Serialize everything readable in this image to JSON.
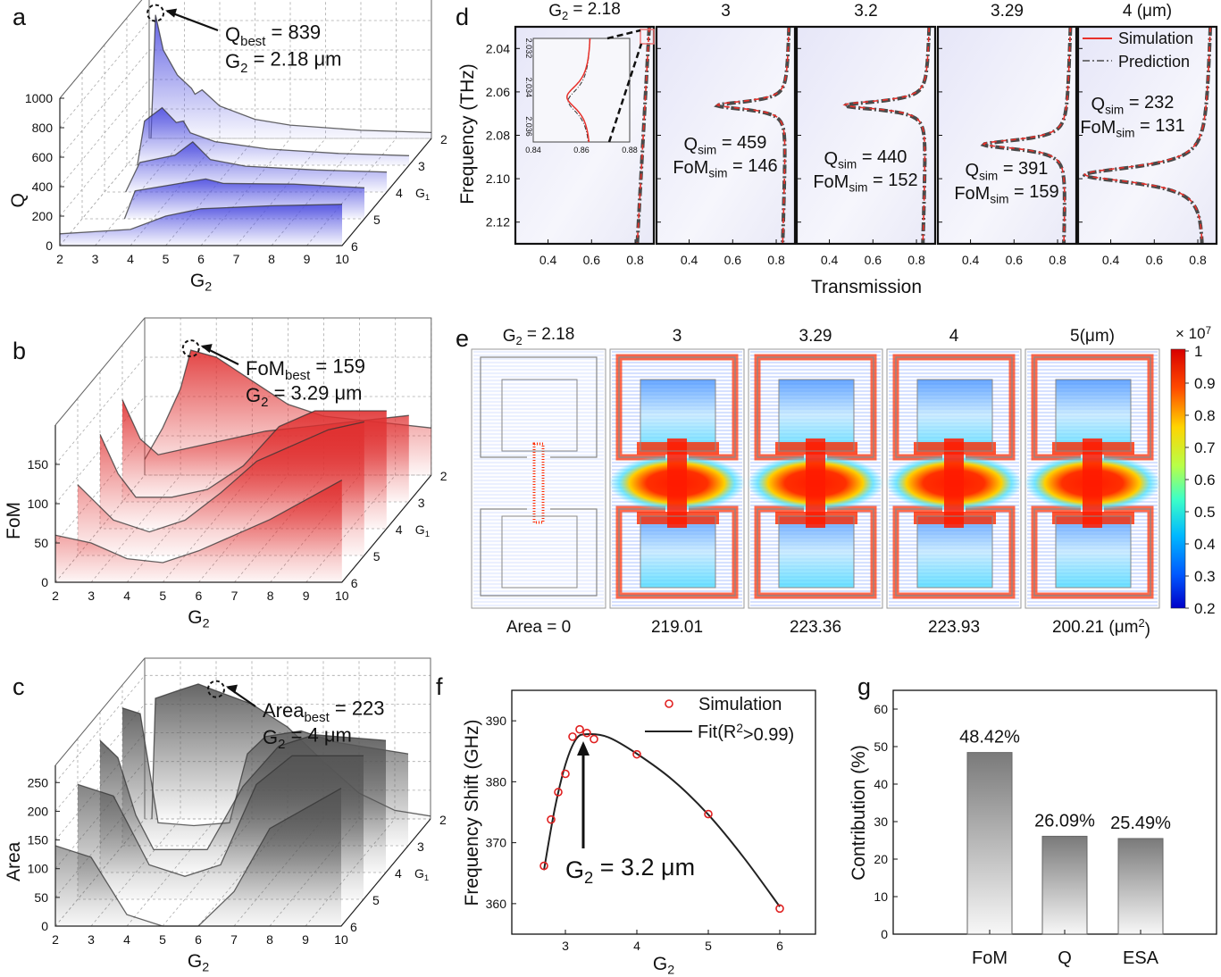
{
  "figure": {
    "panel_labels": [
      "a",
      "b",
      "c",
      "d",
      "e",
      "f",
      "g"
    ]
  },
  "chart_data": [
    {
      "panel": "a",
      "type": "area",
      "subtype": "3d-waterfall",
      "zlabel": "Q",
      "xlabel": {
        "main": "G",
        "sub": "2"
      },
      "ylabel": {
        "main": "G",
        "sub": "1"
      },
      "xlim": [
        2,
        10
      ],
      "ylim": [
        2,
        6
      ],
      "zlim": [
        0,
        1000
      ],
      "xticks": [
        "2",
        "3",
        "4",
        "5",
        "6",
        "7",
        "8",
        "9",
        "10"
      ],
      "yticks": [
        "2",
        "3",
        "4",
        "5",
        "6"
      ],
      "zticks": [
        "0",
        "200",
        "400",
        "600",
        "800",
        "1000"
      ],
      "grid": true,
      "color": "#5050e0",
      "series": [
        {
          "g1": 2,
          "points": [
            [
              2.05,
              0
            ],
            [
              2.18,
              839
            ],
            [
              2.4,
              600
            ],
            [
              2.8,
              430
            ],
            [
              3.2,
              340
            ],
            [
              3.3,
              300
            ],
            [
              3.5,
              330
            ],
            [
              4,
              220
            ],
            [
              5,
              130
            ],
            [
              6,
              90
            ],
            [
              8,
              55
            ],
            [
              10,
              40
            ]
          ]
        },
        {
          "g1": 3,
          "points": [
            [
              2.3,
              0
            ],
            [
              2.5,
              300
            ],
            [
              3,
              390
            ],
            [
              3.4,
              290
            ],
            [
              3.6,
              300
            ],
            [
              3.8,
              220
            ],
            [
              4.5,
              160
            ],
            [
              6,
              110
            ],
            [
              8,
              80
            ],
            [
              10,
              65
            ]
          ]
        },
        {
          "g1": 4,
          "points": [
            [
              2.6,
              0
            ],
            [
              3,
              200
            ],
            [
              4,
              250
            ],
            [
              4.5,
              340
            ],
            [
              5,
              220
            ],
            [
              6,
              175
            ],
            [
              8,
              150
            ],
            [
              10,
              135
            ]
          ]
        },
        {
          "g1": 5,
          "points": [
            [
              3.2,
              0
            ],
            [
              3.5,
              190
            ],
            [
              4.5,
              230
            ],
            [
              5.5,
              270
            ],
            [
              6,
              240
            ],
            [
              8,
              235
            ],
            [
              10,
              210
            ]
          ]
        },
        {
          "g1": 6,
          "points": [
            [
              2,
              80
            ],
            [
              4,
              110
            ],
            [
              5,
              200
            ],
            [
              6,
              250
            ],
            [
              8,
              270
            ],
            [
              10,
              280
            ]
          ]
        }
      ],
      "annotation": {
        "x": 2.18,
        "g1": 2,
        "z": 839,
        "lines": [
          {
            "main": "Q",
            "sub": "best",
            "rest": " = 839"
          },
          {
            "main": "G",
            "sub": "2",
            "rest": " = 2.18 μm"
          }
        ]
      }
    },
    {
      "panel": "b",
      "type": "area",
      "subtype": "3d-waterfall",
      "zlabel": "FoM",
      "xlabel": {
        "main": "G",
        "sub": "2"
      },
      "ylabel": {
        "main": "G",
        "sub": "1"
      },
      "xlim": [
        2,
        10
      ],
      "ylim": [
        2,
        6
      ],
      "zlim": [
        0,
        200
      ],
      "xticks": [
        "2",
        "3",
        "4",
        "5",
        "6",
        "7",
        "8",
        "9",
        "10"
      ],
      "yticks": [
        "2",
        "3",
        "4",
        "5",
        "6"
      ],
      "zticks": [
        "0",
        "50",
        "100",
        "150"
      ],
      "grid": true,
      "color": "#e03030",
      "series": [
        {
          "g1": 2,
          "points": [
            [
              2,
              20
            ],
            [
              2.5,
              60
            ],
            [
              3,
              110
            ],
            [
              3.29,
              159
            ],
            [
              4,
              150
            ],
            [
              5,
              120
            ],
            [
              6,
              90
            ],
            [
              7,
              75
            ],
            [
              8,
              70
            ],
            [
              10,
              60
            ]
          ]
        },
        {
          "g1": 3,
          "points": [
            [
              2,
              130
            ],
            [
              2.5,
              80
            ],
            [
              3,
              60
            ],
            [
              4,
              70
            ],
            [
              5,
              80
            ],
            [
              6,
              90
            ],
            [
              8,
              100
            ],
            [
              10,
              110
            ]
          ]
        },
        {
          "g1": 4,
          "points": [
            [
              2,
              120
            ],
            [
              2.5,
              70
            ],
            [
              3,
              40
            ],
            [
              4,
              40
            ],
            [
              5,
              50
            ],
            [
              6,
              80
            ],
            [
              7,
              130
            ],
            [
              8,
              150
            ],
            [
              10,
              150
            ]
          ]
        },
        {
          "g1": 5,
          "points": [
            [
              2,
              90
            ],
            [
              3,
              45
            ],
            [
              4,
              30
            ],
            [
              5,
              45
            ],
            [
              6,
              80
            ],
            [
              7,
              120
            ],
            [
              9,
              160
            ],
            [
              10,
              170
            ]
          ]
        },
        {
          "g1": 6,
          "points": [
            [
              2,
              60
            ],
            [
              3,
              50
            ],
            [
              4,
              30
            ],
            [
              5,
              25
            ],
            [
              6,
              40
            ],
            [
              8,
              80
            ],
            [
              10,
              130
            ]
          ]
        }
      ],
      "annotation": {
        "x": 3.29,
        "g1": 2,
        "z": 159,
        "lines": [
          {
            "main": "FoM",
            "sub": "best",
            "rest": " = 159"
          },
          {
            "main": "G",
            "sub": "2",
            "rest": " = 3.29 μm"
          }
        ]
      }
    },
    {
      "panel": "c",
      "type": "area",
      "subtype": "3d-waterfall",
      "zlabel": "Area",
      "xlabel": {
        "main": "G",
        "sub": "2"
      },
      "ylabel": {
        "main": "G",
        "sub": "1"
      },
      "xlim": [
        2,
        10
      ],
      "ylim": [
        2,
        6
      ],
      "zlim": [
        0,
        280
      ],
      "xticks": [
        "2",
        "3",
        "4",
        "5",
        "6",
        "7",
        "8",
        "9",
        "10"
      ],
      "yticks": [
        "2",
        "3",
        "4",
        "5",
        "6"
      ],
      "zticks": [
        "0",
        "50",
        "100",
        "150",
        "200",
        "250"
      ],
      "grid": true,
      "color": "#555555",
      "series": [
        {
          "g1": 2,
          "points": [
            [
              2.2,
              0
            ],
            [
              2.3,
              210
            ],
            [
              3,
              225
            ],
            [
              3.5,
              235
            ],
            [
              4,
              223
            ],
            [
              5,
              200
            ],
            [
              6,
              160
            ],
            [
              7,
              100
            ],
            [
              8,
              45
            ],
            [
              9,
              15
            ],
            [
              10,
              5
            ]
          ]
        },
        {
          "g1": 3,
          "points": [
            [
              2,
              240
            ],
            [
              2.5,
              230
            ],
            [
              3,
              40
            ],
            [
              4,
              35
            ],
            [
              5,
              40
            ],
            [
              5.5,
              160
            ],
            [
              6,
              190
            ],
            [
              7,
              200
            ],
            [
              8,
              180
            ],
            [
              10,
              160
            ]
          ]
        },
        {
          "g1": 4,
          "points": [
            [
              2,
              230
            ],
            [
              2.5,
              200
            ],
            [
              3,
              100
            ],
            [
              3.5,
              40
            ],
            [
              5,
              40
            ],
            [
              6,
              150
            ],
            [
              7,
              220
            ],
            [
              8,
              240
            ],
            [
              10,
              230
            ]
          ]
        },
        {
          "g1": 5,
          "points": [
            [
              2,
              200
            ],
            [
              3,
              180
            ],
            [
              4,
              60
            ],
            [
              5,
              40
            ],
            [
              6,
              60
            ],
            [
              7,
              200
            ],
            [
              8,
              250
            ],
            [
              10,
              250
            ]
          ]
        },
        {
          "g1": 6,
          "points": [
            [
              2,
              140
            ],
            [
              3,
              120
            ],
            [
              4,
              20
            ],
            [
              5,
              0
            ],
            [
              6,
              0
            ],
            [
              7,
              60
            ],
            [
              8,
              170
            ],
            [
              10,
              240
            ]
          ]
        }
      ],
      "annotation": {
        "x": 4,
        "g1": 2,
        "z": 223,
        "lines": [
          {
            "main": "Area",
            "sub": "best",
            "rest": " = 223"
          },
          {
            "main": "G",
            "sub": "2",
            "rest": " = 4 μm"
          }
        ]
      }
    },
    {
      "panel": "d",
      "type": "line",
      "ylabel": "Frequency (THz)",
      "xlabel": "Transmission",
      "xlim": [
        0.25,
        0.886
      ],
      "ylim": [
        2.03,
        2.13
      ],
      "y_inverted": true,
      "xticks": [
        "0.4",
        "0.6",
        "0.8"
      ],
      "yticks": [
        "2.04",
        "2.06",
        "2.08",
        "2.10",
        "2.12"
      ],
      "legend": {
        "position": "top-right",
        "items": [
          "Simulation",
          "Prediction"
        ]
      },
      "colors": {
        "simulation": "#e8302a",
        "prediction": "#4a4a4a"
      },
      "subplots": [
        {
          "title": {
            "main": "G",
            "sub": "2",
            "rest": " = 2.18"
          },
          "f0": null,
          "t_min": null,
          "base": [
            0.865,
            0.81
          ]
        },
        {
          "title": {
            "main": "3",
            "sub": "",
            "rest": ""
          },
          "f0": 2.066,
          "t_min": 0.53,
          "base": [
            0.86,
            0.83
          ],
          "q_sim": {
            "main": "Q",
            "sub": "sim",
            "rest": " = 459"
          },
          "fom_sim": {
            "main": "FoM",
            "sub": "sim",
            "rest": " = 146"
          },
          "Q": 459
        },
        {
          "title": {
            "main": "3.2",
            "sub": "",
            "rest": ""
          },
          "f0": 2.066,
          "t_min": 0.47,
          "base": [
            0.86,
            0.83
          ],
          "q_sim": {
            "main": "Q",
            "sub": "sim",
            "rest": " = 440"
          },
          "fom_sim": {
            "main": "FoM",
            "sub": "sim",
            "rest": " = 152"
          },
          "Q": 440
        },
        {
          "title": {
            "main": "3.29",
            "sub": "",
            "rest": ""
          },
          "f0": 2.084,
          "t_min": 0.46,
          "base": [
            0.86,
            0.83
          ],
          "q_sim": {
            "main": "Q",
            "sub": "sim",
            "rest": " = 391"
          },
          "fom_sim": {
            "main": "FoM",
            "sub": "sim",
            "rest": " = 159"
          },
          "Q": 391
        },
        {
          "title": {
            "main": "4 (μm)",
            "sub": "",
            "rest": ""
          },
          "f0": 2.098,
          "t_min": 0.28,
          "base": [
            0.86,
            0.83
          ],
          "q_sim": {
            "main": "Q",
            "sub": "sim",
            "rest": " = 232"
          },
          "fom_sim": {
            "main": "FoM",
            "sub": "sim",
            "rest": " = 131"
          },
          "Q": 232
        }
      ],
      "inset": {
        "xlim": [
          0.84,
          0.88
        ],
        "ylim": [
          2.0315,
          2.0368
        ],
        "xticks": [
          "0.84",
          "0.86",
          "0.88"
        ],
        "yticks": [
          "2.032",
          "2.034",
          "2.036"
        ],
        "f0": 2.0345,
        "t_min": 0.854
      }
    },
    {
      "panel": "e",
      "type": "heatmap",
      "subtype": "field-maps",
      "titles": [
        {
          "main": "G",
          "sub": "2",
          "rest": " = 2.18"
        },
        {
          "main": "3",
          "sub": "",
          "rest": ""
        },
        {
          "main": "3.29",
          "sub": "",
          "rest": ""
        },
        {
          "main": "4",
          "sub": "",
          "rest": ""
        },
        {
          "main": "5(μm)",
          "sub": "",
          "rest": ""
        }
      ],
      "areas": [
        {
          "main": "Area = 0",
          "sup": "",
          "rest": ""
        },
        {
          "main": "219.01",
          "sup": "",
          "rest": ""
        },
        {
          "main": "223.36",
          "sup": "",
          "rest": ""
        },
        {
          "main": "223.93",
          "sup": "",
          "rest": ""
        },
        {
          "main": "200.21 (μm",
          "sup": "2",
          "rest": ")"
        }
      ],
      "colorbar": {
        "colormap": "jet",
        "range": [
          0.2,
          1
        ],
        "ticks": [
          "1",
          "0.9",
          "0.8",
          "0.7",
          "0.6",
          "0.5",
          "0.4",
          "0.3",
          "0.2"
        ],
        "multiplier": {
          "main": "× 10",
          "sup": "7"
        }
      }
    },
    {
      "panel": "f",
      "type": "scatter",
      "xlabel": {
        "main": "G",
        "sub": "2"
      },
      "ylabel": "Frequency Shift (GHz)",
      "xlim": [
        2.25,
        6.5
      ],
      "ylim": [
        355,
        395
      ],
      "xticks": [
        "3",
        "4",
        "5",
        "6"
      ],
      "yticks": [
        "360",
        "370",
        "380",
        "390"
      ],
      "legend": {
        "position": "top-right",
        "simulation": "Simulation",
        "fit": {
          "main": "Fit(R",
          "sup": "2",
          "rest": ">0.99)"
        }
      },
      "colors": {
        "points": "#e02020",
        "fit": "#222222"
      },
      "series": [
        {
          "name": "Simulation",
          "points": [
            [
              2.7,
              366.2
            ],
            [
              2.8,
              373.8
            ],
            [
              2.9,
              378.3
            ],
            [
              3.0,
              381.3
            ],
            [
              3.1,
              387.4
            ],
            [
              3.2,
              388.6
            ],
            [
              3.3,
              388.0
            ],
            [
              3.4,
              387.0
            ],
            [
              4.0,
              384.5
            ],
            [
              5.0,
              374.7
            ],
            [
              6.0,
              359.2
            ]
          ]
        }
      ],
      "annotation": {
        "x": 3.25,
        "text": {
          "main": "G",
          "sub": "2",
          "rest": " = 3.2 μm"
        }
      }
    },
    {
      "panel": "g",
      "type": "bar",
      "ylabel": "Contribution (%)",
      "ylim": [
        0,
        65
      ],
      "yticks": [
        "0",
        "10",
        "20",
        "30",
        "40",
        "50",
        "60"
      ],
      "categories": [
        "FoM",
        "Q",
        "ESA"
      ],
      "values": [
        48.42,
        26.09,
        25.49
      ],
      "labels": [
        "48.42%",
        "26.09%",
        "25.49%"
      ]
    }
  ]
}
